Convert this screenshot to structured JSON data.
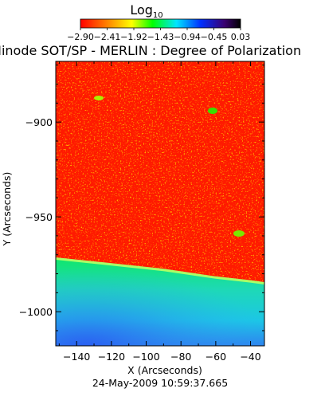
{
  "chart_data": {
    "type": "heatmap",
    "title": "Hinode SOT/SP - MERLIN : Degree of Polarization",
    "xlabel": "X (Arcseconds)",
    "ylabel": "Y (Arcseconds)",
    "xlim": [
      -152,
      -32
    ],
    "ylim": [
      -1018,
      -868
    ],
    "x_ticks": [
      -140,
      -120,
      -100,
      -80,
      -60,
      -40
    ],
    "x_tick_labels": [
      "−140",
      "−120",
      "−100",
      "−80",
      "−60",
      "−40"
    ],
    "y_ticks": [
      -900,
      -950,
      -1000
    ],
    "y_tick_labels": [
      "−900",
      "−950",
      "−1000"
    ],
    "colorbar": {
      "title": "Log",
      "title_subscript": "10",
      "range": [
        -2.9,
        0.03
      ],
      "tick_labels": [
        "−2.90",
        "−2.41",
        "−1.92",
        "−1.43",
        "−0.94",
        "−0.45",
        "0.03"
      ],
      "colors": [
        "#ff0000",
        "#ff8000",
        "#ffff00",
        "#00ff00",
        "#00ffff",
        "#0000ff",
        "#3c0070",
        "#000000"
      ]
    },
    "limb": {
      "description_values": "solar limb boundary, Y at X",
      "x": [
        -152,
        -120,
        -90,
        -60,
        -40,
        -32
      ],
      "y": [
        -972,
        -975,
        -978,
        -982,
        -984,
        -985
      ]
    },
    "regions": [
      {
        "name": "disk",
        "log_value": -2.85,
        "color": "#ff1500"
      },
      {
        "name": "limb-band",
        "log_value": -1.3,
        "color": "#1ee85a"
      },
      {
        "name": "off-limb",
        "log_value": -0.7,
        "color": "#1fd7c4"
      }
    ],
    "timestamp": "24-May-2009 10:59:37.665"
  }
}
